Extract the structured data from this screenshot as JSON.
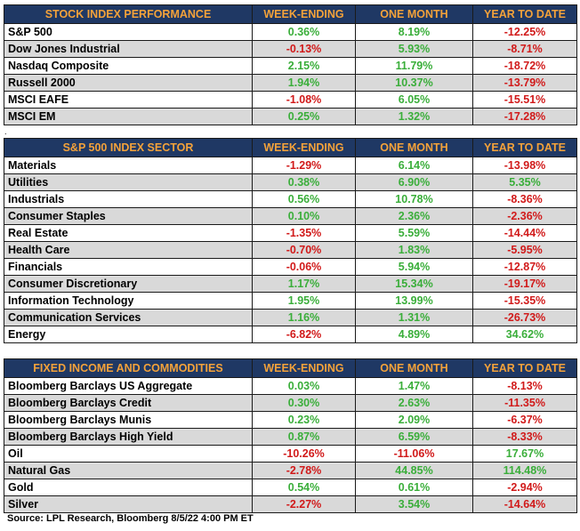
{
  "tables": [
    {
      "headers": [
        "STOCK INDEX PERFORMANCE",
        "WEEK-ENDING",
        "ONE MONTH",
        "YEAR TO DATE"
      ],
      "rows": [
        [
          "S&P 500",
          "0.36%",
          "8.19%",
          "-12.25%"
        ],
        [
          "Dow Jones Industrial",
          "-0.13%",
          "5.93%",
          "-8.71%"
        ],
        [
          "Nasdaq Composite",
          "2.15%",
          "11.79%",
          "-18.72%"
        ],
        [
          "Russell 2000",
          "1.94%",
          "10.37%",
          "-13.79%"
        ],
        [
          "MSCI EAFE",
          "-1.08%",
          "6.05%",
          "-15.51%"
        ],
        [
          "MSCI EM",
          "0.25%",
          "1.32%",
          "-17.28%"
        ]
      ]
    },
    {
      "headers": [
        "S&P 500 INDEX SECTOR",
        "WEEK-ENDING",
        "ONE MONTH",
        "YEAR TO DATE"
      ],
      "rows": [
        [
          "Materials",
          "-1.29%",
          "6.14%",
          "-13.98%"
        ],
        [
          "Utilities",
          "0.38%",
          "6.90%",
          "5.35%"
        ],
        [
          "Industrials",
          "0.56%",
          "10.78%",
          "-8.36%"
        ],
        [
          "Consumer Staples",
          "0.10%",
          "2.36%",
          "-2.36%"
        ],
        [
          "Real Estate",
          "-1.35%",
          "5.59%",
          "-14.44%"
        ],
        [
          "Health Care",
          "-0.70%",
          "1.83%",
          "-5.95%"
        ],
        [
          "Financials",
          "-0.06%",
          "5.94%",
          "-12.87%"
        ],
        [
          "Consumer Discretionary",
          "1.17%",
          "15.34%",
          "-19.17%"
        ],
        [
          "Information Technology",
          "1.95%",
          "13.99%",
          "-15.35%"
        ],
        [
          "Communication Services",
          "1.16%",
          "1.31%",
          "-26.73%"
        ],
        [
          "Energy",
          "-6.82%",
          "4.89%",
          "34.62%"
        ]
      ]
    },
    {
      "headers": [
        "FIXED INCOME AND COMMODITIES",
        "WEEK-ENDING",
        "ONE MONTH",
        "YEAR TO DATE"
      ],
      "rows": [
        [
          "Bloomberg Barclays US Aggregate",
          "0.03%",
          "1.47%",
          "-8.13%"
        ],
        [
          "Bloomberg Barclays Credit",
          "0.30%",
          "2.63%",
          "-11.35%"
        ],
        [
          "Bloomberg Barclays Munis",
          "0.23%",
          "2.09%",
          "-6.37%"
        ],
        [
          "Bloomberg Barclays High Yield",
          "0.87%",
          "6.59%",
          "-8.33%"
        ],
        [
          "Oil",
          "-10.26%",
          "-11.06%",
          "17.67%"
        ],
        [
          "Natural Gas",
          "-2.78%",
          "44.85%",
          "114.48%"
        ],
        [
          "Gold",
          "0.54%",
          "0.61%",
          "-2.94%"
        ],
        [
          "Silver",
          "-2.27%",
          "3.54%",
          "-14.64%"
        ]
      ]
    }
  ],
  "separator_mark": ".",
  "source": "Source: LPL Research, Bloomberg 8/5/22 4:00 PM ET",
  "colors": {
    "header_bg": "#1f3864",
    "header_text": "#f4a23a",
    "positive": "#3aae3a",
    "negative": "#d11a1a",
    "stripe": "#d9d9d9"
  }
}
